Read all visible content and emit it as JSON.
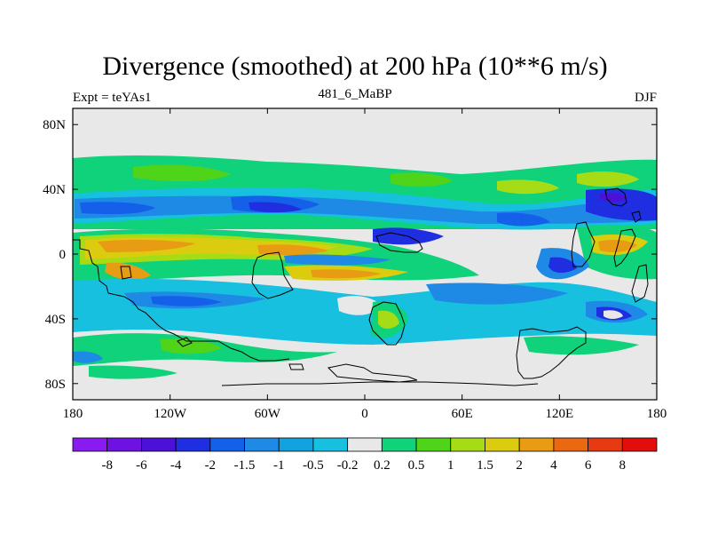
{
  "chart_data": {
    "type": "heatmap",
    "title": "Divergence (smoothed) at 200 hPa (10**6 m/s)",
    "subtitle": "481_6_MaBP",
    "left_label": "Expt = teYAs1",
    "right_label": "DJF",
    "x_axis": {
      "range": [
        -180,
        180
      ],
      "ticks": [
        {
          "value": -180,
          "label": "180"
        },
        {
          "value": -120,
          "label": "120W"
        },
        {
          "value": -60,
          "label": "60W"
        },
        {
          "value": 0,
          "label": "0"
        },
        {
          "value": 60,
          "label": "60E"
        },
        {
          "value": 120,
          "label": "120E"
        },
        {
          "value": 180,
          "label": "180"
        }
      ]
    },
    "y_axis": {
      "range": [
        -90,
        90
      ],
      "ticks": [
        {
          "value": 80,
          "label": "80N"
        },
        {
          "value": 40,
          "label": "40N"
        },
        {
          "value": 0,
          "label": "0"
        },
        {
          "value": -40,
          "label": "40S"
        },
        {
          "value": -80,
          "label": "80S"
        }
      ]
    },
    "colorbar": {
      "labels": [
        "-8",
        "-6",
        "-4",
        "-2",
        "-1.5",
        "-1",
        "-0.5",
        "-0.2",
        "0.2",
        "0.5",
        "1",
        "1.5",
        "2",
        "4",
        "6",
        "8"
      ],
      "colors": [
        "#8a1bf0",
        "#6d12e0",
        "#4b11d6",
        "#1e2ee0",
        "#1560e8",
        "#1e8ae6",
        "#12a2e0",
        "#16c0de",
        "#e8e8e8",
        "#10d27a",
        "#4fd41a",
        "#a6dc16",
        "#dccc10",
        "#e89c14",
        "#ea6812",
        "#e63a12",
        "#e20e0e"
      ]
    }
  },
  "colors": {
    "neutral": "#e8e8e8",
    "outline": "#000000"
  }
}
